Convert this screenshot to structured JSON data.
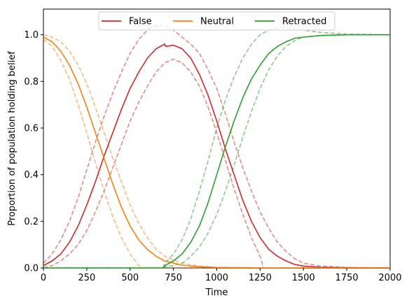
{
  "chart_data": {
    "type": "line",
    "xlabel": "Time",
    "ylabel": "Proportion of population holding belief",
    "xlim": [
      0,
      2000
    ],
    "ylim": [
      0,
      1.11
    ],
    "x_ticks": [
      0,
      250,
      500,
      750,
      1000,
      1250,
      1500,
      1750,
      2000
    ],
    "y_ticks": [
      0.0,
      0.2,
      0.4,
      0.6,
      0.8,
      1.0
    ],
    "x_tick_labels": [
      "0",
      "250",
      "500",
      "750",
      "1000",
      "1250",
      "1500",
      "1750",
      "2000"
    ],
    "y_tick_labels": [
      "0.0",
      "0.2",
      "0.4",
      "0.6",
      "0.8",
      "1.0"
    ],
    "grid": false,
    "legend_position": "upper center",
    "legend_columns": 3,
    "series": [
      {
        "name": "False",
        "color": "#d62728",
        "style": "solid",
        "points": [
          [
            0,
            0.01
          ],
          [
            50,
            0.03
          ],
          [
            100,
            0.06
          ],
          [
            150,
            0.11
          ],
          [
            200,
            0.18
          ],
          [
            250,
            0.27
          ],
          [
            300,
            0.37
          ],
          [
            350,
            0.48
          ],
          [
            400,
            0.58
          ],
          [
            450,
            0.68
          ],
          [
            500,
            0.77
          ],
          [
            550,
            0.84
          ],
          [
            600,
            0.9
          ],
          [
            650,
            0.94
          ],
          [
            700,
            0.96
          ],
          [
            705,
            0.95
          ],
          [
            750,
            0.955
          ],
          [
            800,
            0.94
          ],
          [
            850,
            0.9
          ],
          [
            900,
            0.83
          ],
          [
            950,
            0.74
          ],
          [
            1000,
            0.63
          ],
          [
            1050,
            0.51
          ],
          [
            1100,
            0.4
          ],
          [
            1150,
            0.29
          ],
          [
            1200,
            0.2
          ],
          [
            1250,
            0.13
          ],
          [
            1300,
            0.08
          ],
          [
            1350,
            0.05
          ],
          [
            1400,
            0.03
          ],
          [
            1450,
            0.015
          ],
          [
            1500,
            0.008
          ],
          [
            1600,
            0.003
          ],
          [
            1750,
            0.001
          ],
          [
            2000,
            0.0
          ]
        ]
      },
      {
        "name": "False upper band",
        "color": "#d62728",
        "style": "dashed",
        "points": [
          [
            0,
            0.02
          ],
          [
            50,
            0.06
          ],
          [
            100,
            0.12
          ],
          [
            150,
            0.2
          ],
          [
            200,
            0.3
          ],
          [
            250,
            0.42
          ],
          [
            300,
            0.54
          ],
          [
            350,
            0.65
          ],
          [
            400,
            0.75
          ],
          [
            450,
            0.84
          ],
          [
            500,
            0.92
          ],
          [
            550,
            0.98
          ],
          [
            600,
            1.02
          ],
          [
            650,
            1.04
          ],
          [
            700,
            1.04
          ],
          [
            750,
            1.02
          ],
          [
            800,
            0.99
          ],
          [
            850,
            0.96
          ],
          [
            900,
            0.92
          ],
          [
            950,
            0.85
          ],
          [
            1000,
            0.77
          ],
          [
            1050,
            0.66
          ],
          [
            1100,
            0.54
          ],
          [
            1150,
            0.43
          ],
          [
            1200,
            0.33
          ],
          [
            1250,
            0.24
          ],
          [
            1300,
            0.17
          ],
          [
            1350,
            0.11
          ],
          [
            1400,
            0.07
          ],
          [
            1450,
            0.04
          ],
          [
            1500,
            0.02
          ],
          [
            1600,
            0.008
          ],
          [
            1750,
            0.002
          ],
          [
            2000,
            0.0
          ]
        ]
      },
      {
        "name": "False lower band",
        "color": "#d62728",
        "style": "dashed",
        "points": [
          [
            0,
            0.0
          ],
          [
            50,
            0.01
          ],
          [
            100,
            0.03
          ],
          [
            150,
            0.06
          ],
          [
            200,
            0.1
          ],
          [
            250,
            0.16
          ],
          [
            300,
            0.24
          ],
          [
            350,
            0.33
          ],
          [
            400,
            0.43
          ],
          [
            450,
            0.53
          ],
          [
            500,
            0.63
          ],
          [
            550,
            0.71
          ],
          [
            600,
            0.78
          ],
          [
            650,
            0.84
          ],
          [
            700,
            0.88
          ],
          [
            750,
            0.895
          ],
          [
            800,
            0.88
          ],
          [
            850,
            0.84
          ],
          [
            900,
            0.78
          ],
          [
            950,
            0.69
          ],
          [
            1000,
            0.58
          ],
          [
            1050,
            0.46
          ],
          [
            1100,
            0.34
          ],
          [
            1150,
            0.23
          ],
          [
            1200,
            0.13
          ],
          [
            1250,
            0.05
          ],
          [
            1270,
            0.0
          ]
        ]
      },
      {
        "name": "Neutral",
        "color": "#ff7f0e",
        "style": "solid",
        "points": [
          [
            0,
            0.99
          ],
          [
            50,
            0.97
          ],
          [
            100,
            0.93
          ],
          [
            150,
            0.87
          ],
          [
            200,
            0.79
          ],
          [
            250,
            0.69
          ],
          [
            300,
            0.58
          ],
          [
            350,
            0.47
          ],
          [
            400,
            0.36
          ],
          [
            450,
            0.26
          ],
          [
            500,
            0.18
          ],
          [
            550,
            0.12
          ],
          [
            600,
            0.08
          ],
          [
            650,
            0.05
          ],
          [
            700,
            0.03
          ],
          [
            800,
            0.012
          ],
          [
            900,
            0.005
          ],
          [
            1000,
            0.002
          ],
          [
            1250,
            0.0
          ],
          [
            2000,
            0.0
          ]
        ]
      },
      {
        "name": "Neutral upper band",
        "color": "#ff7f0e",
        "style": "dashed",
        "points": [
          [
            0,
            1.0
          ],
          [
            50,
            0.99
          ],
          [
            100,
            0.97
          ],
          [
            150,
            0.93
          ],
          [
            200,
            0.87
          ],
          [
            250,
            0.79
          ],
          [
            300,
            0.69
          ],
          [
            350,
            0.58
          ],
          [
            400,
            0.47
          ],
          [
            450,
            0.37
          ],
          [
            500,
            0.27
          ],
          [
            550,
            0.19
          ],
          [
            600,
            0.13
          ],
          [
            650,
            0.08
          ],
          [
            700,
            0.05
          ],
          [
            800,
            0.02
          ],
          [
            900,
            0.008
          ],
          [
            1000,
            0.003
          ],
          [
            1250,
            0.0
          ],
          [
            2000,
            0.0
          ]
        ]
      },
      {
        "name": "Neutral lower band",
        "color": "#ff7f0e",
        "style": "dashed",
        "points": [
          [
            0,
            0.98
          ],
          [
            50,
            0.95
          ],
          [
            100,
            0.89
          ],
          [
            150,
            0.81
          ],
          [
            200,
            0.7
          ],
          [
            250,
            0.58
          ],
          [
            300,
            0.45
          ],
          [
            350,
            0.33
          ],
          [
            400,
            0.22
          ],
          [
            450,
            0.13
          ],
          [
            500,
            0.06
          ],
          [
            550,
            0.01
          ],
          [
            570,
            0.0
          ],
          [
            2000,
            0.0
          ]
        ]
      },
      {
        "name": "Retracted",
        "color": "#2ca02c",
        "style": "solid",
        "points": [
          [
            0,
            0.0
          ],
          [
            690,
            0.0
          ],
          [
            700,
            0.01
          ],
          [
            750,
            0.03
          ],
          [
            800,
            0.06
          ],
          [
            850,
            0.11
          ],
          [
            900,
            0.18
          ],
          [
            950,
            0.28
          ],
          [
            1000,
            0.4
          ],
          [
            1050,
            0.52
          ],
          [
            1100,
            0.63
          ],
          [
            1150,
            0.73
          ],
          [
            1200,
            0.81
          ],
          [
            1250,
            0.87
          ],
          [
            1300,
            0.92
          ],
          [
            1350,
            0.95
          ],
          [
            1400,
            0.97
          ],
          [
            1450,
            0.985
          ],
          [
            1500,
            0.99
          ],
          [
            1600,
            0.997
          ],
          [
            1750,
            1.0
          ],
          [
            2000,
            1.0
          ]
        ]
      },
      {
        "name": "Retracted upper band",
        "color": "#2ca02c",
        "style": "dashed",
        "points": [
          [
            0,
            0.0
          ],
          [
            690,
            0.0
          ],
          [
            700,
            0.02
          ],
          [
            750,
            0.06
          ],
          [
            800,
            0.12
          ],
          [
            850,
            0.21
          ],
          [
            900,
            0.33
          ],
          [
            950,
            0.46
          ],
          [
            1000,
            0.6
          ],
          [
            1050,
            0.72
          ],
          [
            1100,
            0.82
          ],
          [
            1150,
            0.9
          ],
          [
            1200,
            0.96
          ],
          [
            1250,
            1.0
          ],
          [
            1300,
            1.02
          ],
          [
            1350,
            1.03
          ],
          [
            1400,
            1.03
          ],
          [
            1500,
            1.02
          ],
          [
            1600,
            1.01
          ],
          [
            1750,
            1.003
          ],
          [
            2000,
            1.0
          ]
        ]
      },
      {
        "name": "Retracted lower band",
        "color": "#2ca02c",
        "style": "dashed",
        "points": [
          [
            0,
            0.0
          ],
          [
            690,
            0.0
          ],
          [
            700,
            0.005
          ],
          [
            750,
            0.01
          ],
          [
            800,
            0.02
          ],
          [
            850,
            0.05
          ],
          [
            900,
            0.09
          ],
          [
            950,
            0.15
          ],
          [
            1000,
            0.23
          ],
          [
            1050,
            0.33
          ],
          [
            1100,
            0.44
          ],
          [
            1150,
            0.56
          ],
          [
            1200,
            0.67
          ],
          [
            1250,
            0.77
          ],
          [
            1300,
            0.85
          ],
          [
            1350,
            0.91
          ],
          [
            1400,
            0.95
          ],
          [
            1450,
            0.975
          ],
          [
            1500,
            0.99
          ],
          [
            1600,
            0.997
          ],
          [
            1750,
            1.0
          ],
          [
            2000,
            1.0
          ]
        ]
      }
    ]
  }
}
